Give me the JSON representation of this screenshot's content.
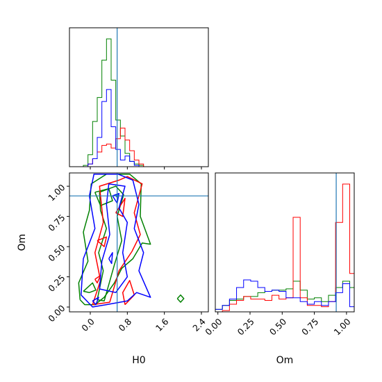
{
  "chart_data": {
    "type": "corner",
    "parameters": [
      "H0",
      "Om"
    ],
    "truths": {
      "H0": 0.58,
      "Om": 0.92
    },
    "truth_color": "#1f77b4",
    "series": [
      {
        "color": "#008000"
      },
      {
        "color": "#ff0000"
      },
      {
        "color": "#0000ff"
      }
    ],
    "panels": [
      {
        "id": "hist-H0",
        "type": "step-histogram",
        "xlim": [
          -0.45,
          2.55
        ],
        "x_ticks": [
          0.0,
          0.8,
          1.6,
          2.4
        ],
        "bin_edges": [
          -0.15,
          -0.05,
          0.05,
          0.15,
          0.25,
          0.35,
          0.45,
          0.55,
          0.65,
          0.75,
          0.85,
          0.95,
          1.05,
          1.15,
          1.25
        ],
        "series_values": [
          [
            0.01,
            0.09,
            0.34,
            0.52,
            0.8,
            0.96,
            0.65,
            0.35,
            0.23,
            0.1,
            0.04,
            0.02,
            0.01,
            0.0
          ],
          [
            0.0,
            0.02,
            0.06,
            0.11,
            0.16,
            0.17,
            0.14,
            0.21,
            0.29,
            0.2,
            0.12,
            0.05,
            0.02,
            0.0
          ],
          [
            0.0,
            0.02,
            0.06,
            0.22,
            0.49,
            0.58,
            0.3,
            0.13,
            0.05,
            0.08,
            0.04,
            0.01,
            0.0,
            0.0
          ]
        ]
      },
      {
        "id": "contour-H0-Om",
        "type": "contour",
        "xlim": [
          -0.45,
          2.55
        ],
        "ylim": [
          -0.04,
          1.11
        ],
        "x_ticks": [
          0.0,
          0.8,
          1.6,
          2.4
        ],
        "y_ticks": [
          0.0,
          0.25,
          0.5,
          0.75,
          1.0
        ],
        "xlabel": "H0",
        "ylabel": "Om",
        "x_tick_labels": [
          "0.0",
          "0.8",
          "1.6",
          "2.4"
        ],
        "y_tick_labels": [
          "0.00",
          "0.25",
          "0.50",
          "0.75",
          "1.00"
        ],
        "contours": [
          {
            "series": 0,
            "points": [
              [
                -0.22,
                0.06
              ],
              [
                -0.12,
                0.02
              ],
              [
                0.1,
                0.02
              ],
              [
                0.3,
                0.08
              ],
              [
                0.52,
                0.2
              ],
              [
                0.68,
                0.32
              ],
              [
                0.92,
                0.4
              ],
              [
                1.12,
                0.53
              ],
              [
                1.3,
                0.52
              ],
              [
                1.08,
                0.75
              ],
              [
                1.1,
                1.02
              ],
              [
                0.85,
                1.1
              ],
              [
                0.35,
                1.1
              ],
              [
                0.02,
                1.02
              ],
              [
                -0.02,
                0.8
              ],
              [
                -0.15,
                0.62
              ],
              [
                -0.05,
                0.38
              ],
              [
                -0.25,
                0.2
              ],
              [
                -0.22,
                0.06
              ]
            ]
          },
          {
            "series": 0,
            "points": [
              [
                0.15,
                0.06
              ],
              [
                0.3,
                0.05
              ],
              [
                0.52,
                0.35
              ],
              [
                0.68,
                0.55
              ],
              [
                0.58,
                0.75
              ],
              [
                0.72,
                0.93
              ],
              [
                0.55,
                1.0
              ],
              [
                0.2,
                0.95
              ],
              [
                0.22,
                0.8
              ],
              [
                0.35,
                0.65
              ],
              [
                0.18,
                0.45
              ],
              [
                0.28,
                0.3
              ],
              [
                0.15,
                0.06
              ]
            ]
          },
          {
            "series": 0,
            "points": [
              [
                0.1,
                0.95
              ],
              [
                0.4,
                0.98
              ],
              [
                0.48,
                0.88
              ],
              [
                0.22,
                0.84
              ],
              [
                0.1,
                0.95
              ]
            ]
          },
          {
            "series": 0,
            "points": [
              [
                -0.15,
                0.13
              ],
              [
                0.05,
                0.2
              ],
              [
                0.12,
                0.14
              ],
              [
                -0.02,
                0.12
              ],
              [
                -0.15,
                0.13
              ]
            ]
          },
          {
            "series": 0,
            "points": [
              [
                1.88,
                0.07
              ],
              [
                1.95,
                0.1
              ],
              [
                2.02,
                0.07
              ],
              [
                1.95,
                0.04
              ],
              [
                1.88,
                0.07
              ]
            ]
          },
          {
            "series": 1,
            "points": [
              [
                0.05,
                0.02
              ],
              [
                0.42,
                0.04
              ],
              [
                0.62,
                0.3
              ],
              [
                0.9,
                0.46
              ],
              [
                1.08,
                0.6
              ],
              [
                0.95,
                0.78
              ],
              [
                1.12,
                1.02
              ],
              [
                0.8,
                1.08
              ],
              [
                0.62,
                1.05
              ],
              [
                0.2,
                1.0
              ],
              [
                0.28,
                0.7
              ],
              [
                0.1,
                0.45
              ],
              [
                0.22,
                0.22
              ],
              [
                0.05,
                0.02
              ]
            ]
          },
          {
            "series": 1,
            "points": [
              [
                0.75,
                0.02
              ],
              [
                0.95,
                0.1
              ],
              [
                0.85,
                0.22
              ],
              [
                0.7,
                0.12
              ],
              [
                0.75,
                0.02
              ]
            ]
          },
          {
            "series": 1,
            "points": [
              [
                0.15,
                0.55
              ],
              [
                0.35,
                0.58
              ],
              [
                0.3,
                0.5
              ],
              [
                0.15,
                0.55
              ]
            ]
          },
          {
            "series": 1,
            "points": [
              [
                0.55,
                0.78
              ],
              [
                0.75,
                0.9
              ],
              [
                0.7,
                0.75
              ],
              [
                0.55,
                0.78
              ]
            ]
          },
          {
            "series": 1,
            "points": [
              [
                0.1,
                0.23
              ],
              [
                0.22,
                0.26
              ],
              [
                0.15,
                0.2
              ],
              [
                0.1,
                0.23
              ]
            ]
          },
          {
            "series": 2,
            "points": [
              [
                -0.2,
                0.1
              ],
              [
                0.05,
                0.0
              ],
              [
                0.35,
                0.02
              ],
              [
                0.8,
                0.05
              ],
              [
                1.0,
                0.12
              ],
              [
                1.3,
                0.08
              ],
              [
                1.05,
                0.3
              ],
              [
                1.15,
                0.45
              ],
              [
                0.95,
                0.65
              ],
              [
                1.05,
                0.85
              ],
              [
                0.92,
                1.05
              ],
              [
                0.6,
                1.1
              ],
              [
                0.08,
                1.1
              ],
              [
                -0.02,
                0.92
              ],
              [
                0.1,
                0.65
              ],
              [
                -0.15,
                0.4
              ],
              [
                -0.2,
                0.1
              ]
            ]
          },
          {
            "series": 2,
            "points": [
              [
                0.2,
                0.15
              ],
              [
                0.55,
                0.12
              ],
              [
                0.8,
                0.25
              ],
              [
                0.7,
                0.45
              ],
              [
                0.8,
                0.7
              ],
              [
                0.62,
                0.82
              ],
              [
                0.75,
                1.0
              ],
              [
                0.4,
                1.02
              ],
              [
                0.35,
                0.85
              ],
              [
                0.42,
                0.6
              ],
              [
                0.25,
                0.38
              ],
              [
                0.2,
                0.15
              ]
            ]
          },
          {
            "series": 2,
            "points": [
              [
                0.48,
                0.92
              ],
              [
                0.62,
                0.94
              ],
              [
                0.58,
                0.86
              ],
              [
                0.48,
                0.92
              ]
            ]
          },
          {
            "series": 2,
            "points": [
              [
                0.4,
                0.4
              ],
              [
                0.48,
                0.45
              ],
              [
                0.46,
                0.36
              ],
              [
                0.4,
                0.4
              ]
            ]
          },
          {
            "series": 2,
            "points": [
              [
                0.05,
                0.05
              ],
              [
                0.18,
                0.08
              ],
              [
                0.12,
                0.02
              ],
              [
                0.05,
                0.05
              ]
            ]
          }
        ]
      },
      {
        "id": "hist-Om",
        "type": "step-histogram",
        "xlim": [
          -0.02,
          1.06
        ],
        "x_ticks": [
          0.0,
          0.25,
          0.5,
          0.75,
          1.0
        ],
        "xlabel": "Om",
        "x_tick_labels": [
          "0.00",
          "0.25",
          "0.50",
          "0.75",
          "1.00"
        ],
        "bin_edges": [
          -0.02,
          0.035,
          0.09,
          0.145,
          0.2,
          0.255,
          0.31,
          0.365,
          0.42,
          0.475,
          0.53,
          0.585,
          0.64,
          0.695,
          0.75,
          0.805,
          0.86,
          0.915,
          0.97,
          1.025,
          1.06
        ],
        "series_values": [
          [
            0.02,
            0.05,
            0.09,
            0.1,
            0.12,
            0.12,
            0.15,
            0.16,
            0.17,
            0.17,
            0.18,
            0.24,
            0.17,
            0.1,
            0.11,
            0.08,
            0.13,
            0.19,
            0.24,
            0.19
          ],
          [
            0.0,
            0.01,
            0.06,
            0.09,
            0.12,
            0.1,
            0.1,
            0.09,
            0.13,
            0.1,
            0.11,
            0.74,
            0.11,
            0.05,
            0.05,
            0.04,
            0.08,
            0.7,
            1.0,
            0.3
          ],
          [
            0.02,
            0.05,
            0.1,
            0.19,
            0.25,
            0.24,
            0.19,
            0.16,
            0.17,
            0.16,
            0.11,
            0.11,
            0.08,
            0.06,
            0.08,
            0.05,
            0.08,
            0.15,
            0.22,
            0.04
          ]
        ]
      }
    ]
  }
}
